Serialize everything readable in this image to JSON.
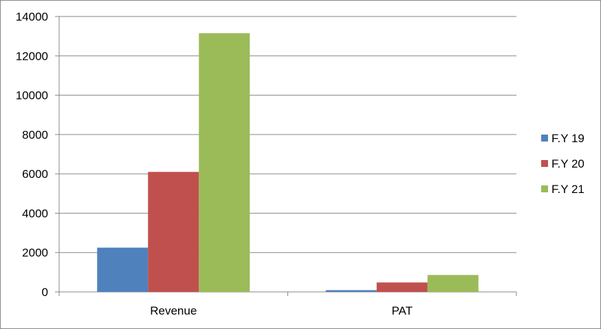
{
  "chart_data": {
    "type": "bar",
    "categories": [
      "Revenue",
      "PAT"
    ],
    "series": [
      {
        "name": "F.Y 19",
        "values": [
          2250,
          90
        ],
        "color": "#4f81bd"
      },
      {
        "name": "F.Y 20",
        "values": [
          6100,
          480
        ],
        "color": "#c0504d"
      },
      {
        "name": "F.Y 21",
        "values": [
          13150,
          860
        ],
        "color": "#9bbb59"
      }
    ],
    "ylim": [
      0,
      14000
    ],
    "yticks": [
      0,
      2000,
      4000,
      6000,
      8000,
      10000,
      12000,
      14000
    ],
    "grid": true,
    "legend_position": "right"
  }
}
